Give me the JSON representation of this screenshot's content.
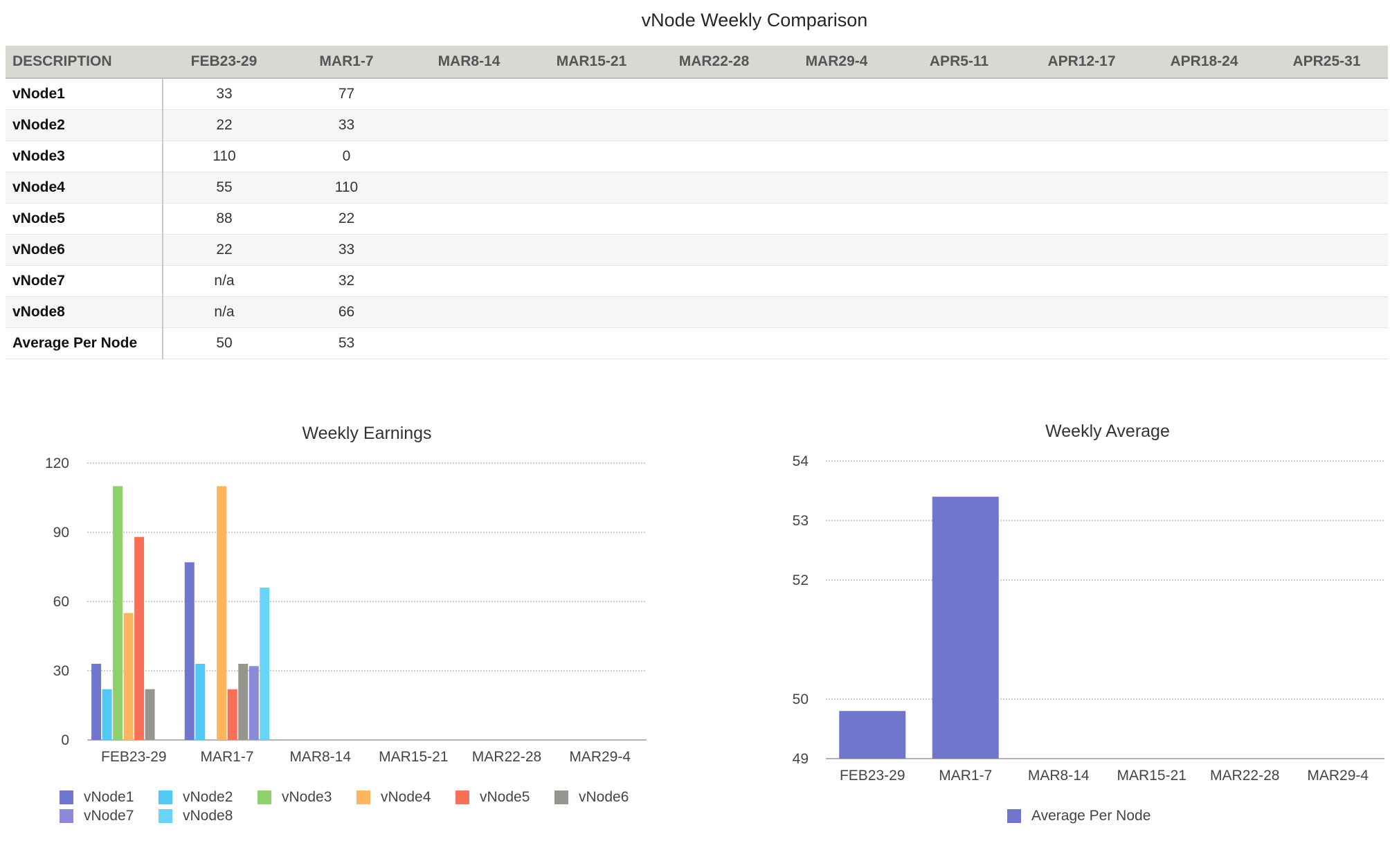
{
  "page_title": "vNode Weekly Comparison",
  "table": {
    "headers": [
      "DESCRIPTION",
      "FEB23-29",
      "MAR1-7",
      "MAR8-14",
      "MAR15-21",
      "MAR22-28",
      "MAR29-4",
      "APR5-11",
      "APR12-17",
      "APR18-24",
      "APR25-31"
    ],
    "rows": [
      {
        "name": "vNode1",
        "cells": [
          "33",
          "77",
          "",
          "",
          "",
          "",
          "",
          "",
          "",
          ""
        ]
      },
      {
        "name": "vNode2",
        "cells": [
          "22",
          "33",
          "",
          "",
          "",
          "",
          "",
          "",
          "",
          ""
        ]
      },
      {
        "name": "vNode3",
        "cells": [
          "110",
          "0",
          "",
          "",
          "",
          "",
          "",
          "",
          "",
          ""
        ]
      },
      {
        "name": "vNode4",
        "cells": [
          "55",
          "110",
          "",
          "",
          "",
          "",
          "",
          "",
          "",
          ""
        ]
      },
      {
        "name": "vNode5",
        "cells": [
          "88",
          "22",
          "",
          "",
          "",
          "",
          "",
          "",
          "",
          ""
        ]
      },
      {
        "name": "vNode6",
        "cells": [
          "22",
          "33",
          "",
          "",
          "",
          "",
          "",
          "",
          "",
          ""
        ]
      },
      {
        "name": "vNode7",
        "cells": [
          "n/a",
          "32",
          "",
          "",
          "",
          "",
          "",
          "",
          "",
          ""
        ]
      },
      {
        "name": "vNode8",
        "cells": [
          "n/a",
          "66",
          "",
          "",
          "",
          "",
          "",
          "",
          "",
          ""
        ]
      },
      {
        "name": "Average Per Node",
        "cells": [
          "50",
          "53",
          "",
          "",
          "",
          "",
          "",
          "",
          "",
          ""
        ]
      }
    ]
  },
  "chart_data": [
    {
      "type": "bar",
      "title": "Weekly Earnings",
      "xlabel": "",
      "ylabel": "",
      "categories": [
        "FEB23-29",
        "MAR1-7",
        "MAR8-14",
        "MAR15-21",
        "MAR22-28",
        "MAR29-4"
      ],
      "ylim": [
        0,
        120
      ],
      "yticks": [
        0,
        30,
        60,
        90,
        120
      ],
      "grid": true,
      "legend_position": "bottom",
      "series": [
        {
          "name": "vNode1",
          "color": "#6f76cc",
          "values": [
            33,
            77,
            null,
            null,
            null,
            null
          ]
        },
        {
          "name": "vNode2",
          "color": "#54c8f4",
          "values": [
            22,
            33,
            null,
            null,
            null,
            null
          ]
        },
        {
          "name": "vNode3",
          "color": "#8fd06c",
          "values": [
            110,
            0,
            null,
            null,
            null,
            null
          ]
        },
        {
          "name": "vNode4",
          "color": "#fcb55e",
          "values": [
            55,
            110,
            null,
            null,
            null,
            null
          ]
        },
        {
          "name": "vNode5",
          "color": "#f8705a",
          "values": [
            88,
            22,
            null,
            null,
            null,
            null
          ]
        },
        {
          "name": "vNode6",
          "color": "#98948f",
          "values": [
            22,
            33,
            null,
            null,
            null,
            null
          ]
        },
        {
          "name": "vNode7",
          "color": "#8a8ad8",
          "values": [
            null,
            32,
            null,
            null,
            null,
            null
          ]
        },
        {
          "name": "vNode8",
          "color": "#6ad4f8",
          "values": [
            null,
            66,
            null,
            null,
            null,
            null
          ]
        }
      ]
    },
    {
      "type": "bar",
      "title": "Weekly Average",
      "xlabel": "",
      "ylabel": "",
      "categories": [
        "FEB23-29",
        "MAR1-7",
        "MAR8-14",
        "MAR15-21",
        "MAR22-28",
        "MAR29-4"
      ],
      "ylim": [
        49,
        54
      ],
      "yticks": [
        49,
        50,
        52,
        53,
        54
      ],
      "grid": true,
      "legend_position": "bottom",
      "series": [
        {
          "name": "Average Per Node",
          "color": "#6f76cc",
          "values": [
            49.8,
            53.4,
            null,
            null,
            null,
            null
          ]
        }
      ]
    }
  ]
}
